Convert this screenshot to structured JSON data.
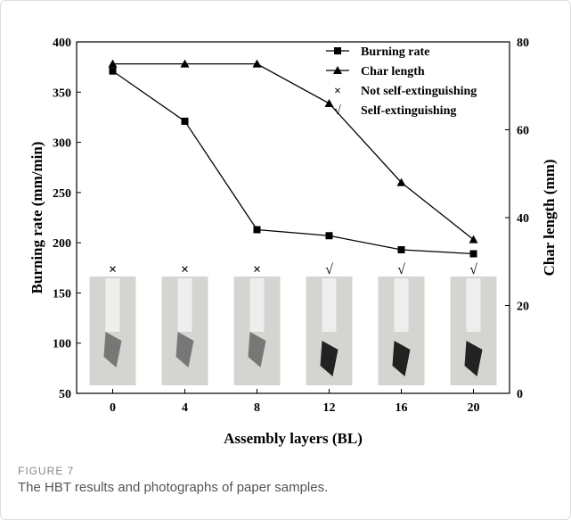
{
  "chart_data": {
    "type": "line",
    "x": [
      0,
      4,
      8,
      12,
      16,
      20
    ],
    "xlim": [
      -2,
      22
    ],
    "xticks": [
      0,
      4,
      8,
      12,
      16,
      20
    ],
    "ylim": [
      50,
      400
    ],
    "yticks": [
      50,
      100,
      150,
      200,
      250,
      300,
      350,
      400
    ],
    "y2lim": [
      0,
      80
    ],
    "y2ticks": [
      0,
      20,
      40,
      60,
      80
    ],
    "xlabel": "Assembly layers (BL)",
    "ylabel": "Burning rate (mm/min)",
    "y2label": "Char length (mm)",
    "series": [
      {
        "name": "Burning rate",
        "color": "#000000",
        "marker": "square",
        "values": [
          371,
          321,
          213,
          207,
          193,
          189
        ]
      },
      {
        "name": "Char length",
        "color": "#000000",
        "marker": "triangle",
        "axis": "y2",
        "values": [
          75,
          75,
          75,
          66,
          48,
          35
        ]
      }
    ],
    "legend_extra": [
      {
        "symbol": "×",
        "label": "Not self-extinguishing"
      },
      {
        "symbol": "√",
        "label": "Self-extinguishing"
      }
    ],
    "sample_marks": [
      "×",
      "×",
      "×",
      "√",
      "√",
      "√"
    ]
  },
  "figure": {
    "label": "FIGURE 7",
    "caption": "The HBT results and photographs of paper samples."
  }
}
